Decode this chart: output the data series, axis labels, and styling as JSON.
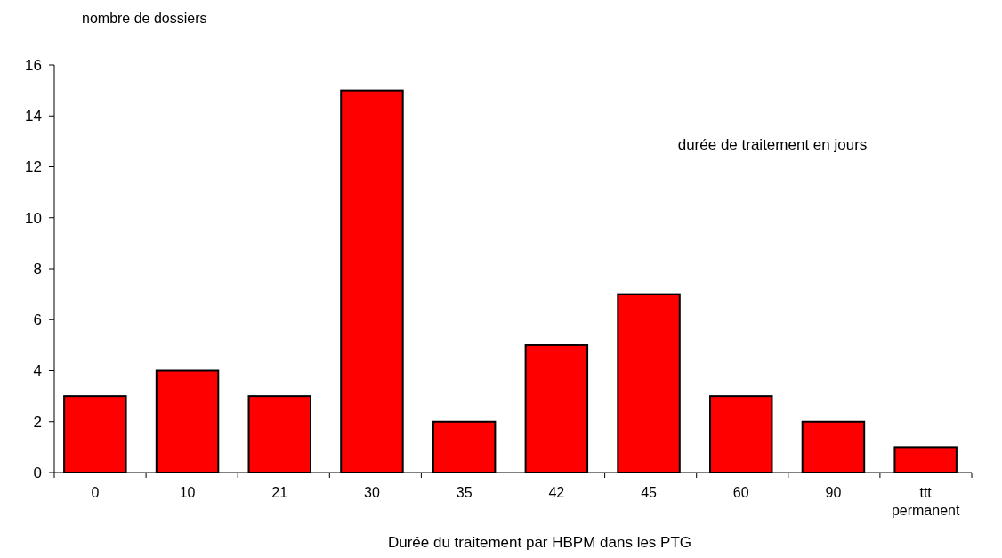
{
  "chart_data": {
    "type": "bar",
    "categories": [
      "0",
      "10",
      "21",
      "30",
      "35",
      "42",
      "45",
      "60",
      "90",
      "ttt permanent"
    ],
    "values": [
      3,
      4,
      3,
      15,
      2,
      5,
      7,
      3,
      2,
      1
    ],
    "color": "#ff0000",
    "ylabel": "nombre de dossiers",
    "xlabel": "Durée du traitement par HBPM dans les PTG",
    "annotations": [
      "durée de traitement en jours"
    ],
    "ylim": [
      0,
      16
    ],
    "yticks": [
      0,
      2,
      4,
      6,
      8,
      10,
      12,
      14,
      16
    ]
  }
}
